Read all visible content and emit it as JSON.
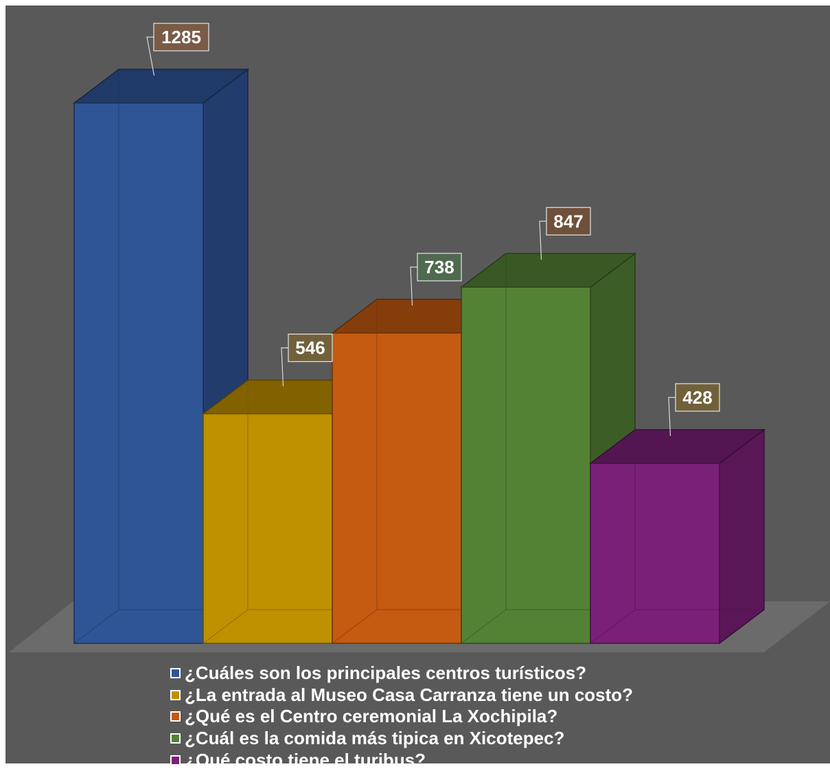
{
  "chart_data": {
    "type": "bar",
    "three_d": true,
    "categories": [
      "¿Cuáles son los principales centros turísticos?",
      "¿La entrada al Museo Casa Carranza tiene un costo?",
      "¿Qué es el Centro ceremonial La Xochipila?",
      "¿Cuál es la comida más tipica en Xicotepec?",
      "¿Qué costo tiene el turibus?"
    ],
    "values": [
      1285,
      546,
      738,
      847,
      428
    ],
    "data_labels": [
      "1285",
      "546",
      "738",
      "847",
      "428"
    ],
    "colors": [
      "#2f5597",
      "#bf9000",
      "#c55a11",
      "#548235",
      "#7b2079"
    ],
    "label_box_colors": [
      "#7a5b47",
      "#71613b",
      "#4f6a4e",
      "#6e503b",
      "#71613b"
    ],
    "background": "#595959",
    "grid": false,
    "legend_position": "bottom",
    "title": "",
    "xlabel": "",
    "ylabel": ""
  }
}
